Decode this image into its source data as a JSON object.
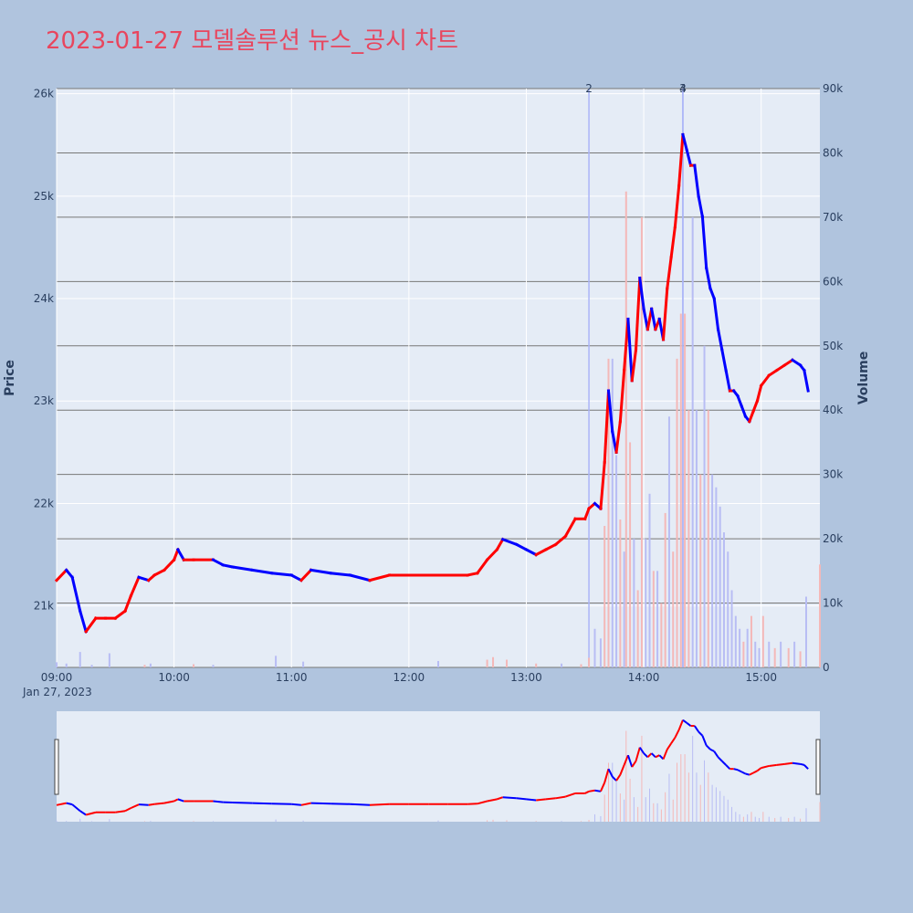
{
  "title": "2023-01-27 모델솔루션 뉴스_공시 차트",
  "colors": {
    "background": "#b0c4de",
    "plot_bg": "#e5ecf6",
    "title": "#e8465e",
    "up": "#ff0000",
    "down": "#0000ff",
    "up_volume": "#f4b8b8",
    "down_volume": "#b8bdf4",
    "marker_line": "#aab4f8",
    "volume_grid": "#777777"
  },
  "chart_data": {
    "type": "candlestick",
    "x_axis": {
      "ticks": [
        "09:00",
        "10:00",
        "11:00",
        "12:00",
        "13:00",
        "14:00",
        "15:00"
      ],
      "date_label": "Jan 27, 2023",
      "range": [
        "09:00",
        "15:30"
      ]
    },
    "y_price": {
      "label": "Price",
      "range": [
        20400,
        26050
      ],
      "ticks": [
        21000,
        22000,
        23000,
        24000,
        25000,
        26000
      ],
      "tick_labels": [
        "21k",
        "22k",
        "23k",
        "24k",
        "25k",
        "26k"
      ]
    },
    "y_volume": {
      "label": "Volume",
      "range": [
        0,
        90000
      ],
      "ticks": [
        0,
        10000,
        20000,
        30000,
        40000,
        50000,
        60000,
        70000,
        80000,
        90000
      ],
      "tick_labels": [
        "0",
        "10k",
        "20k",
        "30k",
        "40k",
        "50k",
        "60k",
        "70k",
        "80k",
        "90k"
      ]
    },
    "price_series": [
      [
        "09:00",
        21250
      ],
      [
        "09:05",
        21350
      ],
      [
        "09:08",
        21280
      ],
      [
        "09:12",
        20950
      ],
      [
        "09:15",
        20750
      ],
      [
        "09:20",
        20880
      ],
      [
        "09:25",
        20880
      ],
      [
        "09:30",
        20880
      ],
      [
        "09:35",
        20950
      ],
      [
        "09:38",
        21100
      ],
      [
        "09:42",
        21280
      ],
      [
        "09:47",
        21250
      ],
      [
        "09:50",
        21300
      ],
      [
        "09:55",
        21350
      ],
      [
        "10:00",
        21450
      ],
      [
        "10:02",
        21550
      ],
      [
        "10:05",
        21450
      ],
      [
        "10:10",
        21450
      ],
      [
        "10:20",
        21450
      ],
      [
        "10:25",
        21400
      ],
      [
        "10:30",
        21380
      ],
      [
        "10:40",
        21350
      ],
      [
        "10:50",
        21320
      ],
      [
        "11:00",
        21300
      ],
      [
        "11:05",
        21250
      ],
      [
        "11:10",
        21350
      ],
      [
        "11:20",
        21320
      ],
      [
        "11:30",
        21300
      ],
      [
        "11:40",
        21250
      ],
      [
        "11:50",
        21300
      ],
      [
        "12:00",
        21300
      ],
      [
        "12:10",
        21300
      ],
      [
        "12:20",
        21300
      ],
      [
        "12:30",
        21300
      ],
      [
        "12:35",
        21320
      ],
      [
        "12:40",
        21450
      ],
      [
        "12:45",
        21550
      ],
      [
        "12:48",
        21650
      ],
      [
        "12:55",
        21600
      ],
      [
        "13:00",
        21550
      ],
      [
        "13:05",
        21500
      ],
      [
        "13:10",
        21550
      ],
      [
        "13:15",
        21600
      ],
      [
        "13:20",
        21680
      ],
      [
        "13:25",
        21850
      ],
      [
        "13:30",
        21850
      ],
      [
        "13:32",
        21950
      ],
      [
        "13:35",
        22000
      ],
      [
        "13:38",
        21950
      ],
      [
        "13:40",
        22400
      ],
      [
        "13:42",
        23100
      ],
      [
        "13:44",
        22700
      ],
      [
        "13:46",
        22500
      ],
      [
        "13:48",
        22800
      ],
      [
        "13:50",
        23300
      ],
      [
        "13:52",
        23800
      ],
      [
        "13:54",
        23200
      ],
      [
        "13:56",
        23500
      ],
      [
        "13:58",
        24200
      ],
      [
        "14:00",
        23900
      ],
      [
        "14:02",
        23700
      ],
      [
        "14:04",
        23900
      ],
      [
        "14:06",
        23700
      ],
      [
        "14:08",
        23800
      ],
      [
        "14:10",
        23600
      ],
      [
        "14:12",
        24100
      ],
      [
        "14:14",
        24400
      ],
      [
        "14:16",
        24700
      ],
      [
        "14:18",
        25100
      ],
      [
        "14:20",
        25600
      ],
      [
        "14:22",
        25450
      ],
      [
        "14:24",
        25300
      ],
      [
        "14:26",
        25300
      ],
      [
        "14:28",
        25000
      ],
      [
        "14:30",
        24800
      ],
      [
        "14:32",
        24300
      ],
      [
        "14:34",
        24100
      ],
      [
        "14:36",
        24000
      ],
      [
        "14:38",
        23700
      ],
      [
        "14:40",
        23500
      ],
      [
        "14:42",
        23300
      ],
      [
        "14:44",
        23100
      ],
      [
        "14:46",
        23100
      ],
      [
        "14:48",
        23050
      ],
      [
        "14:50",
        22950
      ],
      [
        "14:52",
        22850
      ],
      [
        "14:54",
        22800
      ],
      [
        "14:56",
        22900
      ],
      [
        "14:58",
        23000
      ],
      [
        "15:00",
        23150
      ],
      [
        "15:04",
        23250
      ],
      [
        "15:08",
        23300
      ],
      [
        "15:12",
        23350
      ],
      [
        "15:16",
        23400
      ],
      [
        "15:20",
        23350
      ],
      [
        "15:22",
        23300
      ],
      [
        "15:24",
        23100
      ]
    ],
    "volume_bars": [
      [
        "09:00",
        800,
        "down"
      ],
      [
        "09:05",
        600,
        "down"
      ],
      [
        "09:12",
        2400,
        "down"
      ],
      [
        "09:18",
        400,
        "down"
      ],
      [
        "09:27",
        2200,
        "down"
      ],
      [
        "09:45",
        400,
        "up"
      ],
      [
        "09:48",
        600,
        "down"
      ],
      [
        "10:10",
        500,
        "up"
      ],
      [
        "10:20",
        400,
        "down"
      ],
      [
        "10:52",
        1800,
        "down"
      ],
      [
        "11:06",
        900,
        "down"
      ],
      [
        "12:15",
        1000,
        "down"
      ],
      [
        "12:40",
        1200,
        "up"
      ],
      [
        "12:43",
        1600,
        "up"
      ],
      [
        "12:50",
        1200,
        "up"
      ],
      [
        "13:05",
        600,
        "up"
      ],
      [
        "13:18",
        600,
        "down"
      ],
      [
        "13:28",
        500,
        "up"
      ],
      [
        "13:32",
        1500,
        "up"
      ],
      [
        "13:35",
        6000,
        "down"
      ],
      [
        "13:38",
        4500,
        "down"
      ],
      [
        "13:40",
        22000,
        "up"
      ],
      [
        "13:42",
        48000,
        "up"
      ],
      [
        "13:44",
        48000,
        "down"
      ],
      [
        "13:46",
        33000,
        "down"
      ],
      [
        "13:48",
        23000,
        "up"
      ],
      [
        "13:50",
        18000,
        "down"
      ],
      [
        "13:51",
        74000,
        "up"
      ],
      [
        "13:53",
        35000,
        "up"
      ],
      [
        "13:55",
        20000,
        "down"
      ],
      [
        "13:57",
        12000,
        "up"
      ],
      [
        "13:59",
        70000,
        "up"
      ],
      [
        "14:01",
        20000,
        "down"
      ],
      [
        "14:03",
        27000,
        "down"
      ],
      [
        "14:05",
        15000,
        "up"
      ],
      [
        "14:07",
        15000,
        "down"
      ],
      [
        "14:09",
        10000,
        "up"
      ],
      [
        "14:11",
        24000,
        "up"
      ],
      [
        "14:13",
        39000,
        "down"
      ],
      [
        "14:15",
        18000,
        "up"
      ],
      [
        "14:17",
        48000,
        "up"
      ],
      [
        "14:19",
        55000,
        "up"
      ],
      [
        "14:21",
        55000,
        "up"
      ],
      [
        "14:23",
        40000,
        "up"
      ],
      [
        "14:25",
        70000,
        "down"
      ],
      [
        "14:27",
        40000,
        "down"
      ],
      [
        "14:29",
        30000,
        "up"
      ],
      [
        "14:31",
        50000,
        "down"
      ],
      [
        "14:33",
        40000,
        "up"
      ],
      [
        "14:35",
        30000,
        "down"
      ],
      [
        "14:37",
        28000,
        "down"
      ],
      [
        "14:39",
        25000,
        "down"
      ],
      [
        "14:41",
        21000,
        "down"
      ],
      [
        "14:43",
        18000,
        "down"
      ],
      [
        "14:45",
        12000,
        "down"
      ],
      [
        "14:47",
        8000,
        "down"
      ],
      [
        "14:49",
        6000,
        "down"
      ],
      [
        "14:51",
        4000,
        "up"
      ],
      [
        "14:53",
        6000,
        "down"
      ],
      [
        "14:55",
        8000,
        "up"
      ],
      [
        "14:57",
        4000,
        "down"
      ],
      [
        "14:59",
        3000,
        "down"
      ],
      [
        "15:01",
        8000,
        "up"
      ],
      [
        "15:04",
        4000,
        "down"
      ],
      [
        "15:07",
        3000,
        "up"
      ],
      [
        "15:10",
        4000,
        "down"
      ],
      [
        "15:14",
        3000,
        "up"
      ],
      [
        "15:17",
        4000,
        "down"
      ],
      [
        "15:20",
        2500,
        "up"
      ],
      [
        "15:23",
        11000,
        "down"
      ],
      [
        "15:30",
        16000,
        "up"
      ]
    ],
    "annotations": [
      {
        "time": "13:32",
        "label": "2"
      },
      {
        "time": "14:20",
        "label": "3"
      },
      {
        "time": "14:20",
        "label": "4"
      }
    ]
  }
}
